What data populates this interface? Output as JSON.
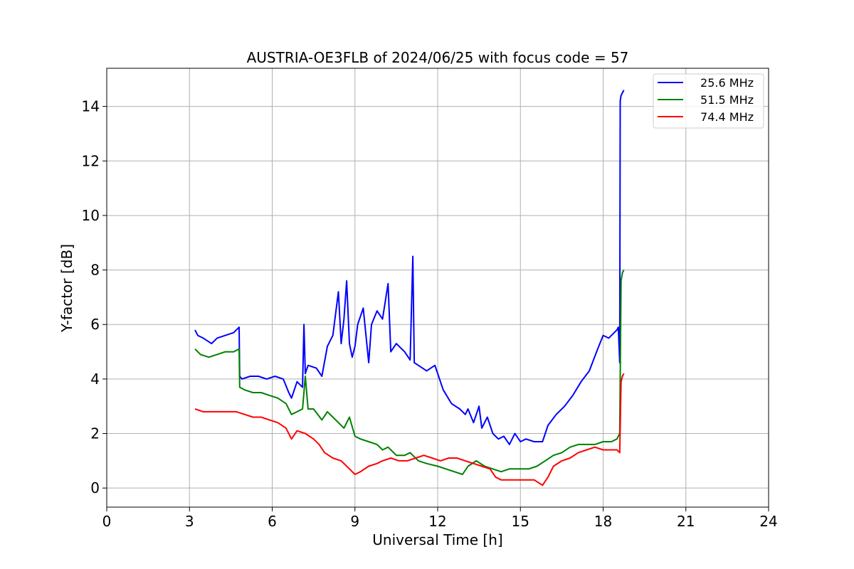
{
  "chart_data": {
    "type": "line",
    "title": "AUSTRIA-OE3FLB of 2024/06/25 with focus code = 57",
    "xlabel": "Universal Time [h]",
    "ylabel": "Y-factor [dB]",
    "xlim": [
      0,
      24
    ],
    "ylim": [
      -0.7,
      15.4
    ],
    "xticks": [
      0,
      3,
      6,
      9,
      12,
      15,
      18,
      21,
      24
    ],
    "yticks": [
      0,
      2,
      4,
      6,
      8,
      10,
      12,
      14
    ],
    "grid": true,
    "legend_position": "top-right",
    "series": [
      {
        "name": "25.6 MHz",
        "color": "#0000ff",
        "x": [
          3.2,
          3.3,
          3.5,
          3.8,
          4.0,
          4.3,
          4.6,
          4.8,
          4.82,
          4.9,
          5.2,
          5.5,
          5.8,
          6.1,
          6.4,
          6.6,
          6.7,
          6.9,
          7.1,
          7.15,
          7.2,
          7.3,
          7.6,
          7.8,
          8.0,
          8.2,
          8.4,
          8.5,
          8.6,
          8.7,
          8.8,
          8.9,
          9.0,
          9.1,
          9.3,
          9.5,
          9.6,
          9.8,
          10.0,
          10.2,
          10.3,
          10.5,
          10.8,
          11.0,
          11.1,
          11.15,
          11.3,
          11.6,
          11.9,
          12.2,
          12.5,
          12.8,
          13.0,
          13.1,
          13.3,
          13.5,
          13.6,
          13.8,
          14.0,
          14.2,
          14.4,
          14.6,
          14.8,
          15.0,
          15.2,
          15.5,
          15.8,
          16.0,
          16.3,
          16.6,
          16.9,
          17.2,
          17.5,
          17.8,
          18.0,
          18.2,
          18.4,
          18.5,
          18.55,
          18.6,
          18.62,
          18.65,
          18.7,
          18.75
        ],
        "values": [
          5.8,
          5.6,
          5.5,
          5.3,
          5.5,
          5.6,
          5.7,
          5.9,
          4.1,
          4.0,
          4.1,
          4.1,
          4.0,
          4.1,
          4.0,
          3.5,
          3.3,
          3.9,
          3.7,
          6.0,
          4.2,
          4.5,
          4.4,
          4.1,
          5.2,
          5.6,
          7.2,
          5.3,
          6.2,
          7.6,
          5.3,
          4.8,
          5.2,
          6.0,
          6.6,
          4.6,
          6.0,
          6.5,
          6.2,
          7.5,
          5.0,
          5.3,
          5.0,
          4.7,
          8.5,
          4.6,
          4.5,
          4.3,
          4.5,
          3.6,
          3.1,
          2.9,
          2.7,
          2.9,
          2.4,
          3.0,
          2.2,
          2.6,
          2.0,
          1.8,
          1.9,
          1.6,
          2.0,
          1.7,
          1.8,
          1.7,
          1.7,
          2.3,
          2.7,
          3.0,
          3.4,
          3.9,
          4.3,
          5.1,
          5.6,
          5.5,
          5.7,
          5.8,
          5.9,
          4.6,
          14.2,
          14.4,
          14.5,
          14.6
        ]
      },
      {
        "name": "51.5 MHz",
        "color": "#008000",
        "x": [
          3.2,
          3.4,
          3.7,
          4.0,
          4.3,
          4.6,
          4.8,
          4.82,
          5.0,
          5.3,
          5.6,
          5.9,
          6.2,
          6.5,
          6.7,
          6.9,
          7.1,
          7.2,
          7.3,
          7.5,
          7.8,
          8.0,
          8.2,
          8.4,
          8.6,
          8.8,
          9.0,
          9.2,
          9.5,
          9.8,
          10.0,
          10.2,
          10.5,
          10.8,
          11.0,
          11.3,
          11.6,
          12.0,
          12.3,
          12.6,
          12.9,
          13.1,
          13.4,
          13.7,
          14.0,
          14.3,
          14.6,
          15.0,
          15.3,
          15.6,
          15.9,
          16.2,
          16.5,
          16.8,
          17.1,
          17.4,
          17.7,
          18.0,
          18.3,
          18.5,
          18.6,
          18.65,
          18.7,
          18.75
        ],
        "values": [
          5.1,
          4.9,
          4.8,
          4.9,
          5.0,
          5.0,
          5.1,
          3.7,
          3.6,
          3.5,
          3.5,
          3.4,
          3.3,
          3.1,
          2.7,
          2.8,
          2.9,
          4.1,
          2.9,
          2.9,
          2.5,
          2.8,
          2.6,
          2.4,
          2.2,
          2.6,
          1.9,
          1.8,
          1.7,
          1.6,
          1.4,
          1.5,
          1.2,
          1.2,
          1.3,
          1.0,
          0.9,
          0.8,
          0.7,
          0.6,
          0.5,
          0.8,
          1.0,
          0.8,
          0.7,
          0.6,
          0.7,
          0.7,
          0.7,
          0.8,
          1.0,
          1.2,
          1.3,
          1.5,
          1.6,
          1.6,
          1.6,
          1.7,
          1.7,
          1.8,
          2.0,
          7.6,
          7.9,
          8.0
        ]
      },
      {
        "name": "74.4 MHz",
        "color": "#ff0000",
        "x": [
          3.2,
          3.5,
          3.8,
          4.1,
          4.4,
          4.7,
          5.0,
          5.3,
          5.6,
          5.9,
          6.2,
          6.5,
          6.7,
          6.9,
          7.2,
          7.5,
          7.7,
          7.9,
          8.2,
          8.5,
          8.8,
          9.0,
          9.2,
          9.5,
          9.8,
          10.0,
          10.3,
          10.6,
          10.9,
          11.2,
          11.5,
          11.8,
          12.1,
          12.4,
          12.7,
          13.0,
          13.3,
          13.6,
          13.9,
          14.1,
          14.3,
          14.6,
          14.9,
          15.2,
          15.5,
          15.8,
          16.0,
          16.2,
          16.5,
          16.8,
          17.1,
          17.4,
          17.7,
          18.0,
          18.3,
          18.5,
          18.6,
          18.65,
          18.7,
          18.75
        ],
        "values": [
          2.9,
          2.8,
          2.8,
          2.8,
          2.8,
          2.8,
          2.7,
          2.6,
          2.6,
          2.5,
          2.4,
          2.2,
          1.8,
          2.1,
          2.0,
          1.8,
          1.6,
          1.3,
          1.1,
          1.0,
          0.7,
          0.5,
          0.6,
          0.8,
          0.9,
          1.0,
          1.1,
          1.0,
          1.0,
          1.1,
          1.2,
          1.1,
          1.0,
          1.1,
          1.1,
          1.0,
          0.9,
          0.8,
          0.7,
          0.4,
          0.3,
          0.3,
          0.3,
          0.3,
          0.3,
          0.1,
          0.4,
          0.8,
          1.0,
          1.1,
          1.3,
          1.4,
          1.5,
          1.4,
          1.4,
          1.4,
          1.3,
          3.9,
          4.1,
          4.2
        ]
      }
    ]
  }
}
